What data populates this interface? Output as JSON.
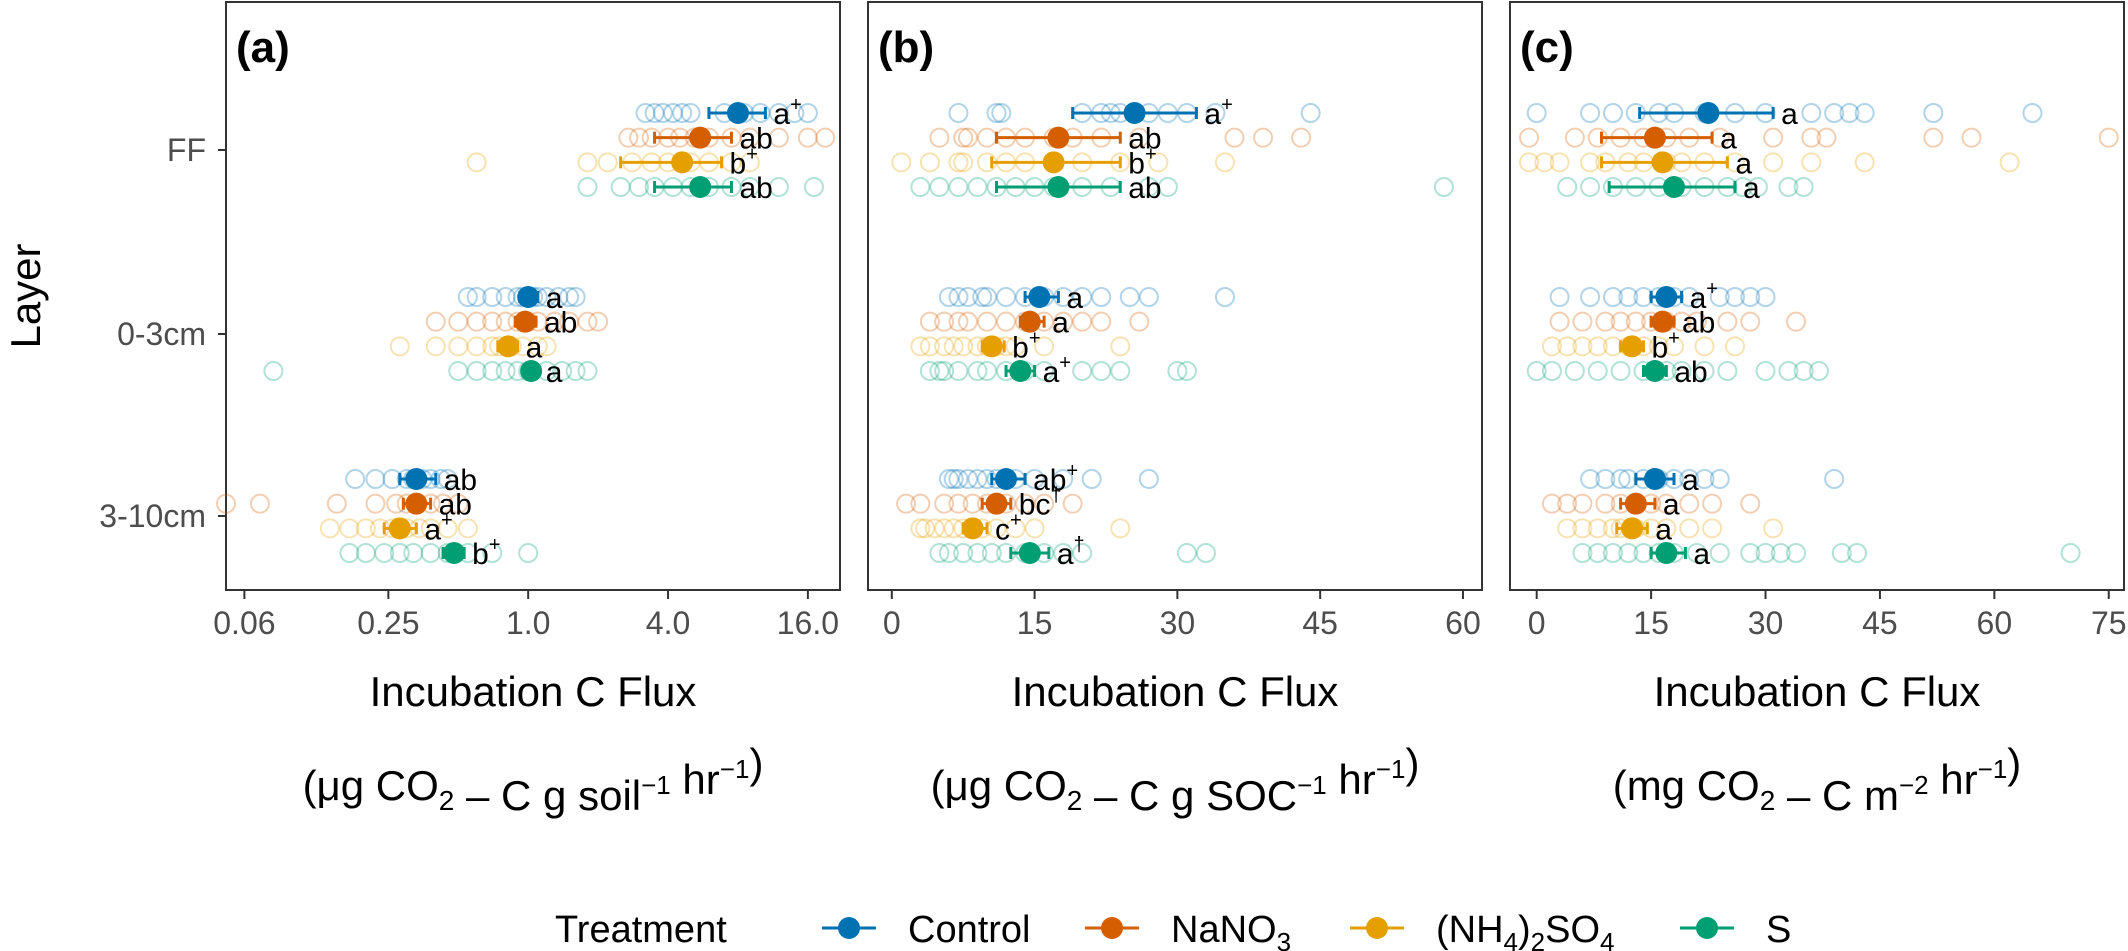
{
  "figure": {
    "y_axis_title": "Layer",
    "legend_title": "Treatment",
    "colors": {
      "Control": "#0072B2",
      "NaNO3": "#D55E00",
      "(NH4)2SO4": "#E69F00",
      "S": "#009E73"
    },
    "legend": [
      {
        "key": "Control",
        "base": "Control",
        "sub": "",
        "tail": ""
      },
      {
        "key": "NaNO3",
        "base": "NaNO",
        "sub": "3",
        "tail": ""
      },
      {
        "key": "(NH4)2SO4",
        "base": "(NH",
        "sub": "4",
        "tail": ")",
        "sub2": "2",
        "tail2": "SO",
        "sub3": "4"
      },
      {
        "key": "S",
        "base": "S",
        "sub": "",
        "tail": ""
      }
    ]
  },
  "chart_data": [
    {
      "type": "scatter",
      "panel": "(a)",
      "xlabel": "Incubation C Flux",
      "xunits": "(μg CO2 – C g soil⁻¹ hr⁻¹)",
      "xscale": "log2",
      "xlim": [
        0.05,
        22
      ],
      "xticks": [
        0.06,
        0.25,
        1.0,
        4.0,
        16.0
      ],
      "xtick_labels": [
        "0.06",
        "0.25",
        "1.0",
        "4.0",
        "16.0"
      ],
      "categories": [
        "FF",
        "0-3cm",
        "3-10cm"
      ],
      "series": [
        {
          "name": "Control",
          "mean": [
            8.0,
            1.0,
            0.33
          ],
          "lo": [
            6.0,
            0.92,
            0.28
          ],
          "hi": [
            10.5,
            1.1,
            0.4
          ],
          "label": [
            "a",
            "a",
            "ab"
          ],
          "sup": [
            "+",
            "",
            ""
          ],
          "points": [
            [
              3.2,
              3.5,
              3.8,
              4.2,
              4.6,
              5.0,
              7.0,
              8.5,
              10,
              12,
              14,
              16
            ],
            [
              0.55,
              0.6,
              0.7,
              0.8,
              0.9,
              0.95,
              1.05,
              1.1,
              1.2,
              1.35,
              1.5,
              1.6
            ],
            [
              0.18,
              0.22,
              0.26,
              0.3,
              0.32,
              0.35,
              0.38,
              0.42,
              0.45
            ]
          ]
        },
        {
          "name": "NaNO3",
          "mean": [
            5.5,
            0.97,
            0.33
          ],
          "lo": [
            3.5,
            0.88,
            0.29
          ],
          "hi": [
            7.5,
            1.08,
            0.38
          ],
          "label": [
            "ab",
            "ab",
            "ab"
          ],
          "sup": [
            "",
            "",
            ""
          ],
          "points": [
            [
              2.7,
              3.0,
              3.4,
              4.0,
              4.5,
              5.2,
              6.0,
              7.5,
              9.0,
              12,
              16,
              19
            ],
            [
              0.4,
              0.5,
              0.6,
              0.7,
              0.8,
              0.9,
              1.0,
              1.1,
              1.3,
              1.5,
              1.8,
              2.0
            ],
            [
              0.05,
              0.07,
              0.15,
              0.22,
              0.27,
              0.3,
              0.33,
              0.38,
              0.43,
              0.5
            ]
          ]
        },
        {
          "name": "(NH4)2SO4",
          "mean": [
            4.6,
            0.82,
            0.28
          ],
          "lo": [
            2.5,
            0.74,
            0.24
          ],
          "hi": [
            6.8,
            0.9,
            0.33
          ],
          "label": [
            "b",
            "a",
            "a"
          ],
          "sup": [
            "+",
            "",
            "+"
          ],
          "points": [
            [
              0.6,
              1.8,
              2.2,
              2.8,
              3.4,
              4.0,
              5.0,
              6.0,
              7.5,
              9.0
            ],
            [
              0.28,
              0.4,
              0.5,
              0.6,
              0.7,
              0.75,
              0.85,
              0.95,
              1.1,
              1.2
            ],
            [
              0.14,
              0.17,
              0.2,
              0.23,
              0.26,
              0.3,
              0.34,
              0.38,
              0.45,
              0.55
            ]
          ]
        },
        {
          "name": "S",
          "mean": [
            5.5,
            1.03,
            0.48
          ],
          "lo": [
            3.5,
            0.95,
            0.43
          ],
          "hi": [
            7.5,
            1.1,
            0.53
          ],
          "label": [
            "ab",
            "a",
            "b"
          ],
          "sup": [
            "",
            "",
            "+"
          ],
          "points": [
            [
              1.8,
              2.5,
              3.0,
              3.5,
              4.2,
              5.0,
              6.0,
              7.5,
              9.0,
              12,
              17
            ],
            [
              0.08,
              0.5,
              0.6,
              0.7,
              0.8,
              0.9,
              1.0,
              1.2,
              1.4,
              1.6,
              1.8
            ],
            [
              0.17,
              0.2,
              0.24,
              0.28,
              0.32,
              0.38,
              0.45,
              0.55,
              0.7,
              1.0
            ]
          ]
        }
      ]
    },
    {
      "type": "scatter",
      "panel": "(b)",
      "xlabel": "Incubation C Flux",
      "xunits": "(μg CO2 – C g SOC⁻¹ hr⁻¹)",
      "xscale": "linear",
      "xlim": [
        -2.5,
        62
      ],
      "xticks": [
        0,
        15,
        30,
        45,
        60
      ],
      "xtick_labels": [
        "0",
        "15",
        "30",
        "45",
        "60"
      ],
      "categories": [
        "FF",
        "0-3cm",
        "3-10cm"
      ],
      "series": [
        {
          "name": "Control",
          "mean": [
            25.5,
            15.5,
            12.0
          ],
          "lo": [
            19.0,
            14.0,
            10.5
          ],
          "hi": [
            32.0,
            17.5,
            14.0
          ],
          "label": [
            "a",
            "a",
            "ab"
          ],
          "sup": [
            "+",
            "",
            "+"
          ],
          "points": [
            [
              7,
              11,
              11.5,
              20,
              22,
              23,
              24,
              27,
              29,
              31,
              34,
              44
            ],
            [
              6,
              7,
              8,
              9.5,
              10,
              12,
              14,
              16,
              18,
              20,
              22,
              25,
              27,
              35
            ],
            [
              6,
              6.5,
              7,
              8,
              9,
              10,
              11,
              13,
              15,
              18,
              21,
              27
            ]
          ]
        },
        {
          "name": "NaNO3",
          "mean": [
            17.5,
            14.5,
            11.0
          ],
          "lo": [
            11.0,
            13.5,
            9.5
          ],
          "hi": [
            24.0,
            16.0,
            12.5
          ],
          "label": [
            "ab",
            "a",
            "bc"
          ],
          "sup": [
            "",
            "",
            "†"
          ],
          "points": [
            [
              5,
              7.5,
              8,
              10,
              12,
              14,
              17,
              19,
              22,
              26,
              36,
              39,
              43
            ],
            [
              4,
              5.5,
              7,
              8,
              10,
              12,
              14,
              16,
              18,
              20,
              22,
              26
            ],
            [
              1.5,
              3,
              5.5,
              7,
              8.5,
              10,
              11,
              12,
              14,
              16,
              19
            ]
          ]
        },
        {
          "name": "(NH4)2SO4",
          "mean": [
            17.0,
            10.5,
            8.5
          ],
          "lo": [
            10.5,
            9.5,
            7.5
          ],
          "hi": [
            24.0,
            11.8,
            10.0
          ],
          "label": [
            "b",
            "b",
            "c"
          ],
          "sup": [
            "+",
            "+",
            "+"
          ],
          "points": [
            [
              1,
              4,
              7,
              7.5,
              10,
              12,
              14,
              17,
              20,
              24,
              28,
              35
            ],
            [
              3,
              4,
              5.5,
              6.5,
              7.5,
              9,
              10,
              11,
              12,
              13,
              16,
              24
            ],
            [
              3,
              3.5,
              4.5,
              5.5,
              6.5,
              7.5,
              8.5,
              9.5,
              11,
              13,
              15,
              24
            ]
          ]
        },
        {
          "name": "S",
          "mean": [
            17.5,
            13.5,
            14.5
          ],
          "lo": [
            11.0,
            12.0,
            12.5
          ],
          "hi": [
            24.0,
            15.0,
            16.5
          ],
          "label": [
            "ab",
            "a",
            "a"
          ],
          "sup": [
            "",
            "+",
            "†"
          ],
          "points": [
            [
              3,
              5,
              7,
              9,
              11,
              13,
              15,
              17,
              20,
              23,
              27,
              29,
              58
            ],
            [
              4,
              5,
              5.5,
              7,
              9,
              10,
              12,
              14,
              16,
              20,
              22,
              24,
              30,
              31
            ],
            [
              5,
              6,
              7.5,
              9,
              10.5,
              12,
              14,
              16,
              18,
              20,
              31,
              33
            ]
          ]
        }
      ]
    },
    {
      "type": "scatter",
      "panel": "(c)",
      "xlabel": "Incubation C Flux",
      "xunits": "(mg CO2 – C m⁻² hr⁻¹)",
      "xscale": "linear",
      "xlim": [
        -3.5,
        77
      ],
      "xticks": [
        0,
        15,
        30,
        45,
        60,
        75
      ],
      "xtick_labels": [
        "0",
        "15",
        "30",
        "45",
        "60",
        "75"
      ],
      "categories": [
        "FF",
        "0-3cm",
        "3-10cm"
      ],
      "series": [
        {
          "name": "Control",
          "mean": [
            22.5,
            17.0,
            15.5
          ],
          "lo": [
            13.5,
            15.0,
            13.0
          ],
          "hi": [
            31.0,
            19.0,
            18.0
          ],
          "label": [
            "a",
            "a",
            "a"
          ],
          "sup": [
            "",
            "+",
            ""
          ],
          "points": [
            [
              0,
              7,
              10,
              13,
              16,
              18,
              22,
              26,
              30,
              36,
              39,
              41,
              43,
              52,
              65
            ],
            [
              3,
              7,
              10,
              12,
              14,
              16,
              18,
              20,
              24,
              26,
              28,
              30
            ],
            [
              7,
              9,
              11,
              12,
              14,
              16,
              18,
              20,
              22,
              24,
              39
            ]
          ]
        },
        {
          "name": "NaNO3",
          "mean": [
            15.5,
            16.5,
            13.0
          ],
          "lo": [
            8.5,
            15.0,
            11.0
          ],
          "hi": [
            23.0,
            18.0,
            15.5
          ],
          "label": [
            "a",
            "ab",
            "a"
          ],
          "sup": [
            "",
            "",
            ""
          ],
          "points": [
            [
              -1,
              5,
              8,
              11,
              14,
              17,
              20,
              24,
              31,
              36,
              38,
              52,
              57,
              75
            ],
            [
              3,
              6,
              9,
              11,
              13,
              15,
              17,
              19,
              21,
              25,
              28,
              34
            ],
            [
              2,
              4,
              6,
              9,
              11,
              13,
              15,
              17,
              20,
              23,
              28
            ]
          ]
        },
        {
          "name": "(NH4)2SO4",
          "mean": [
            16.5,
            12.5,
            12.5
          ],
          "lo": [
            8.5,
            11.0,
            10.5
          ],
          "hi": [
            25.0,
            14.0,
            14.5
          ],
          "label": [
            "a",
            "b",
            "a"
          ],
          "sup": [
            "",
            "+",
            ""
          ],
          "points": [
            [
              -1,
              1,
              3,
              7,
              9,
              12,
              14,
              17,
              19,
              22,
              26,
              31,
              36,
              43,
              62
            ],
            [
              2,
              4,
              6,
              8,
              10,
              12,
              14,
              16,
              18,
              22,
              26
            ],
            [
              4,
              6,
              8,
              10,
              11,
              13,
              15,
              17,
              20,
              23,
              31
            ]
          ]
        },
        {
          "name": "S",
          "mean": [
            18.0,
            15.5,
            17.0
          ],
          "lo": [
            9.5,
            14.0,
            15.0
          ],
          "hi": [
            26.0,
            17.0,
            19.5
          ],
          "label": [
            "a",
            "ab",
            "a"
          ],
          "sup": [
            "",
            "",
            ""
          ],
          "points": [
            [
              4,
              7,
              10,
              13,
              16,
              19,
              22,
              25,
              27,
              29,
              33,
              35
            ],
            [
              0,
              2,
              5,
              8,
              11,
              14,
              17,
              19,
              22,
              25,
              30,
              33,
              35,
              37
            ],
            [
              6,
              8,
              10,
              12,
              14,
              16,
              18,
              21,
              24,
              28,
              30,
              32,
              34,
              40,
              42,
              70
            ]
          ]
        }
      ]
    }
  ]
}
